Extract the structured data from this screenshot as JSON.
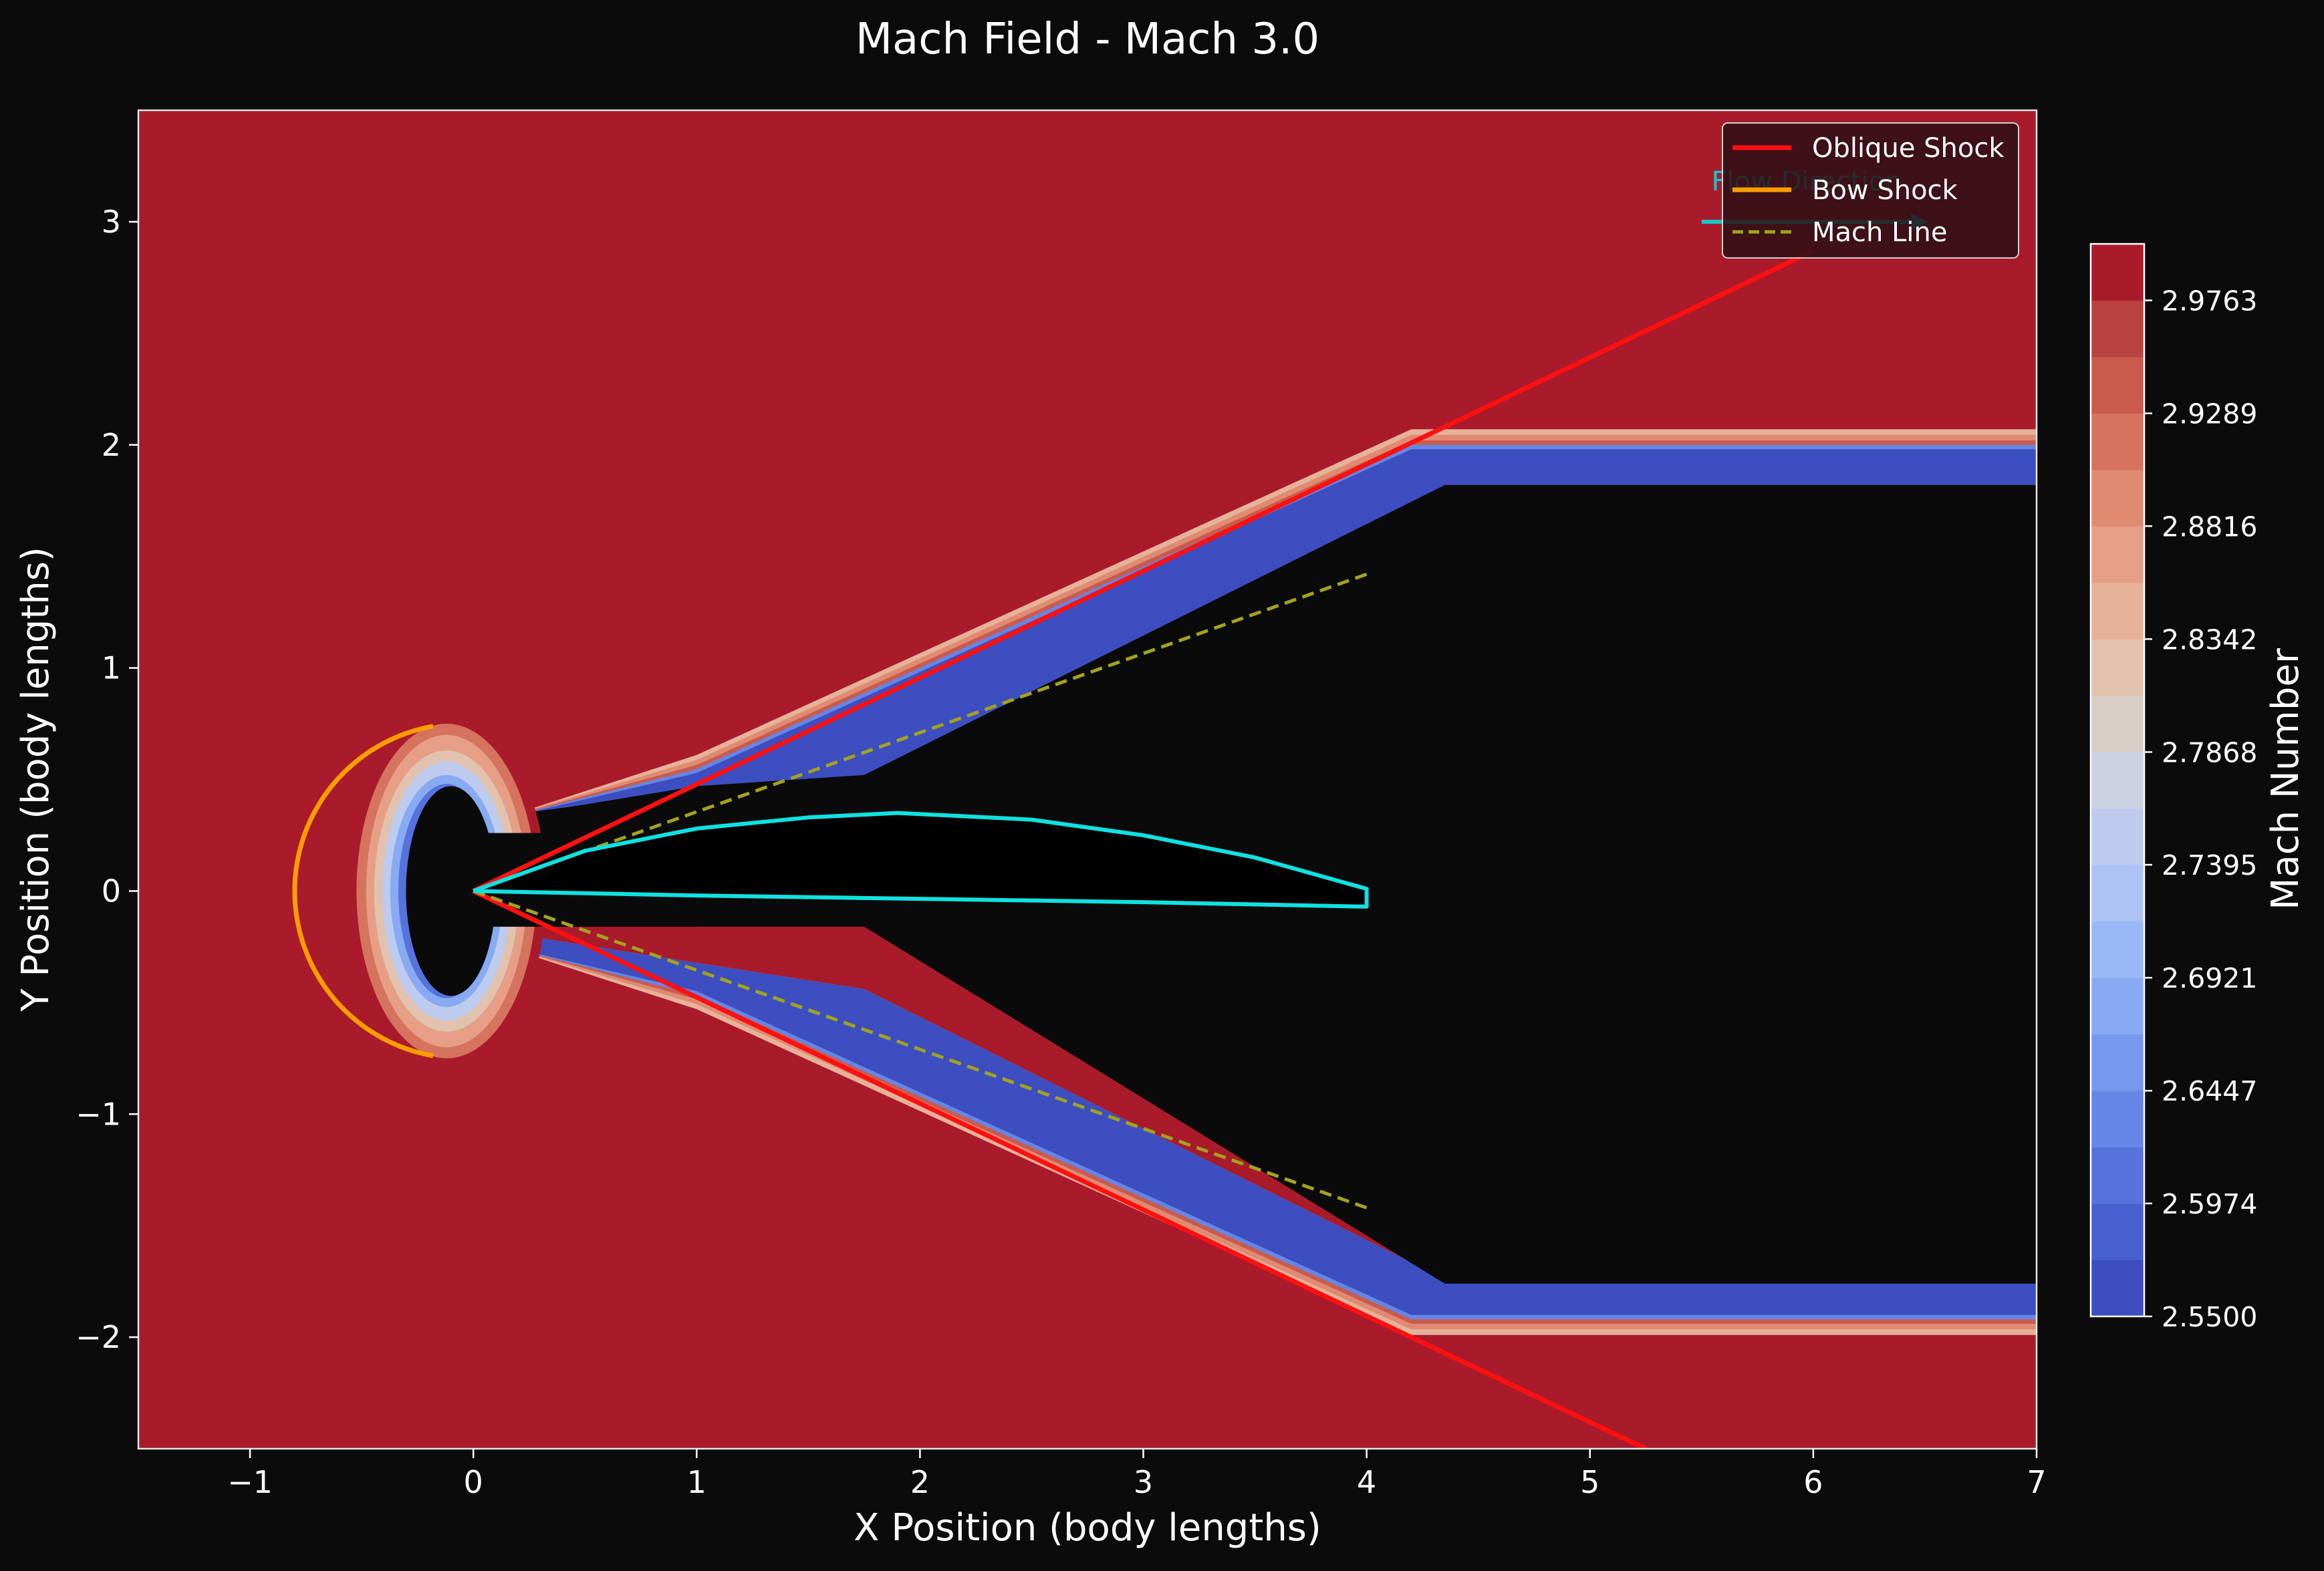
{
  "chart_data": {
    "type": "contour",
    "title": "Mach Field - Mach 3.0",
    "xlabel": "X Position (body lengths)",
    "ylabel": "Y Position (body lengths)",
    "xlim": [
      -1.5,
      7
    ],
    "ylim": [
      -2.5,
      3.5
    ],
    "xticks": [
      -1,
      0,
      1,
      2,
      3,
      4,
      5,
      6,
      7
    ],
    "xtick_labels": [
      "−1",
      "0",
      "1",
      "2",
      "3",
      "4",
      "5",
      "6",
      "7"
    ],
    "yticks": [
      -2,
      -1,
      0,
      1,
      2,
      3
    ],
    "ytick_labels": [
      "−2",
      "−1",
      "0",
      "1",
      "2",
      "3"
    ],
    "grid": false,
    "colorbar": {
      "label": "Mach Number",
      "range": [
        2.55,
        3.0
      ],
      "levels": 19,
      "ticks": [
        2.55,
        2.5974,
        2.6447,
        2.6921,
        2.7395,
        2.7868,
        2.8342,
        2.8816,
        2.9289,
        2.9763
      ],
      "tick_labels": [
        "2.5500",
        "2.5974",
        "2.6447",
        "2.6921",
        "2.7395",
        "2.7868",
        "2.8342",
        "2.8816",
        "2.9289",
        "2.9763"
      ],
      "colors": [
        "#3d4ec0",
        "#4860d0",
        "#5672dd",
        "#6586e6",
        "#7699ee",
        "#88aaf2",
        "#9ab8f5",
        "#acc3f4",
        "#bdcbee",
        "#cdd1e4",
        "#d9cdc7",
        "#e1c2ae",
        "#e6b29a",
        "#e69f86",
        "#e08a72",
        "#d5735f",
        "#c95b4d",
        "#ba4240",
        "#a91b2b"
      ]
    },
    "freestream_color": "#a91b2b",
    "wake_color": "#0a0a0a",
    "body_fill_color": "#000000",
    "series": [
      {
        "name": "Oblique Shock",
        "color": "#ff1010",
        "style": "solid",
        "segments": [
          [
            [
              0,
              0
            ],
            [
              6,
              2.87
            ]
          ],
          [
            [
              0,
              0
            ],
            [
              5.25,
              -2.5
            ]
          ]
        ]
      },
      {
        "name": "Bow Shock",
        "color": "#ff9d00",
        "style": "solid",
        "arc": {
          "center": [
            -0.05,
            0
          ],
          "radius": 0.75,
          "start_deg": 100,
          "end_deg": 260
        }
      },
      {
        "name": "Mach Line",
        "color": "#a2a21f",
        "style": "dashed",
        "segments": [
          [
            [
              0,
              0
            ],
            [
              4,
              1.42
            ]
          ],
          [
            [
              0,
              0
            ],
            [
              4,
              -1.42
            ]
          ]
        ]
      }
    ],
    "body": {
      "color": "#12e0e0",
      "upper": [
        [
          0,
          0
        ],
        [
          0.5,
          0.18
        ],
        [
          1,
          0.28
        ],
        [
          1.5,
          0.33
        ],
        [
          1.9,
          0.35
        ],
        [
          2.5,
          0.32
        ],
        [
          3,
          0.25
        ],
        [
          3.5,
          0.15
        ],
        [
          4,
          0.01
        ]
      ],
      "lower": [
        [
          0,
          0
        ],
        [
          1,
          -0.02
        ],
        [
          2,
          -0.035
        ],
        [
          3,
          -0.05
        ],
        [
          4,
          -0.07
        ]
      ],
      "te_x": 4
    },
    "annotation": {
      "text": "Flow Direction",
      "color": "#17c9c9",
      "text_pos": [
        6.0,
        3.2
      ],
      "arrow_from": [
        5.5,
        3.0
      ],
      "arrow_to": [
        6.45,
        3.0
      ]
    },
    "legend": {
      "location": "top-right",
      "entries": [
        "Oblique Shock",
        "Bow Shock",
        "Mach Line"
      ]
    }
  }
}
